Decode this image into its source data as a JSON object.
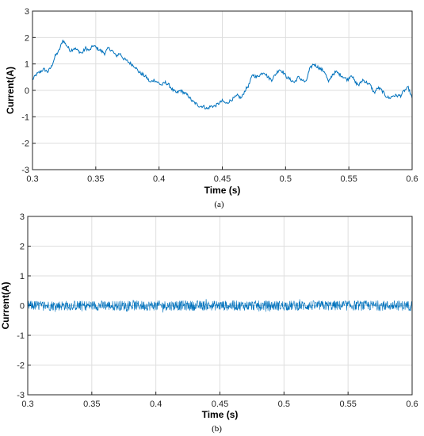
{
  "chart_data": [
    {
      "type": "line",
      "panel_label": "(a)",
      "xlabel": "Time (s)",
      "ylabel": "Current(A)",
      "xlim": [
        0.3,
        0.6
      ],
      "ylim": [
        -3,
        3
      ],
      "xticks": [
        "0.3",
        "0.35",
        "0.4",
        "0.45",
        "0.5",
        "0.55",
        "0.6"
      ],
      "yticks": [
        "-3",
        "-2",
        "-1",
        "0",
        "1",
        "2",
        "3"
      ],
      "grid": true,
      "color": "#0072BD",
      "series": [
        {
          "x": [
            0.3,
            0.303,
            0.306,
            0.309,
            0.312,
            0.315,
            0.318,
            0.321,
            0.324,
            0.327,
            0.33,
            0.333,
            0.336,
            0.339,
            0.342,
            0.345,
            0.348,
            0.351,
            0.354,
            0.357,
            0.36,
            0.363,
            0.366,
            0.369,
            0.372,
            0.375,
            0.378,
            0.381,
            0.384,
            0.387,
            0.39,
            0.393,
            0.396,
            0.399,
            0.402,
            0.405,
            0.408,
            0.411,
            0.414,
            0.417,
            0.42,
            0.423,
            0.426,
            0.429,
            0.432,
            0.435,
            0.438,
            0.441,
            0.444,
            0.447,
            0.45,
            0.453,
            0.456,
            0.459,
            0.462,
            0.465,
            0.468,
            0.471,
            0.474,
            0.477,
            0.48,
            0.483,
            0.486,
            0.489,
            0.492,
            0.495,
            0.498,
            0.501,
            0.504,
            0.507,
            0.51,
            0.513,
            0.516,
            0.519,
            0.522,
            0.525,
            0.528,
            0.531,
            0.534,
            0.537,
            0.54,
            0.543,
            0.546,
            0.549,
            0.552,
            0.555,
            0.558,
            0.561,
            0.564,
            0.567,
            0.57,
            0.573,
            0.576,
            0.579,
            0.582,
            0.585,
            0.588,
            0.591,
            0.594,
            0.597,
            0.6
          ],
          "y": [
            0.4,
            0.6,
            0.7,
            0.8,
            0.7,
            0.9,
            1.3,
            1.5,
            1.9,
            1.7,
            1.5,
            1.6,
            1.5,
            1.4,
            1.6,
            1.5,
            1.7,
            1.6,
            1.5,
            1.4,
            1.6,
            1.5,
            1.3,
            1.4,
            1.2,
            1.1,
            1.0,
            0.9,
            0.7,
            0.6,
            0.5,
            0.3,
            0.4,
            0.3,
            0.2,
            0.3,
            0.2,
            0.0,
            -0.1,
            0.0,
            -0.1,
            -0.2,
            -0.4,
            -0.5,
            -0.6,
            -0.6,
            -0.7,
            -0.6,
            -0.6,
            -0.5,
            -0.4,
            -0.5,
            -0.4,
            -0.3,
            -0.2,
            -0.3,
            0.0,
            0.2,
            0.6,
            0.5,
            0.6,
            0.7,
            0.5,
            0.4,
            0.6,
            0.8,
            0.7,
            0.5,
            0.4,
            0.3,
            0.5,
            0.4,
            0.3,
            0.8,
            1.0,
            0.9,
            0.8,
            0.7,
            0.3,
            0.6,
            0.7,
            0.6,
            0.5,
            0.4,
            0.6,
            0.3,
            0.2,
            0.4,
            0.3,
            0.2,
            -0.1,
            0.1,
            0.0,
            -0.2,
            -0.3,
            -0.2,
            -0.2,
            -0.2,
            0.0,
            0.1,
            -0.3
          ]
        }
      ]
    },
    {
      "type": "line",
      "panel_label": "(b)",
      "xlabel": "Time (s)",
      "ylabel": "Current(A)",
      "xlim": [
        0.3,
        0.6
      ],
      "ylim": [
        -3,
        3
      ],
      "xticks": [
        "0.3",
        "0.35",
        "0.4",
        "0.45",
        "0.5",
        "0.55",
        "0.6"
      ],
      "yticks": [
        "-3",
        "-2",
        "-1",
        "0",
        "1",
        "2",
        "3"
      ],
      "grid": true,
      "color": "#0072BD",
      "series": [
        {
          "x_range": [
            0.3,
            0.6
          ],
          "mean": 0.0,
          "amplitude_range": [
            -0.3,
            0.3
          ],
          "description_points": 1200
        }
      ]
    }
  ]
}
